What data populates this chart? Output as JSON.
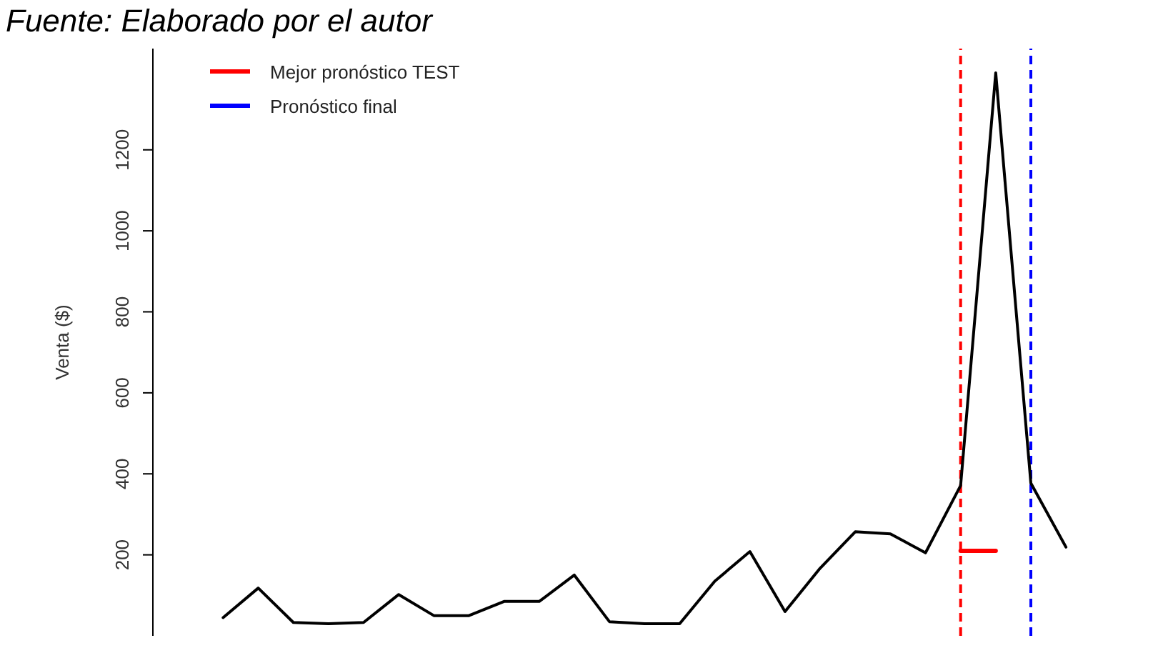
{
  "chart_data": {
    "type": "line",
    "annotations": [
      "Fuente: Elaborado por el autor"
    ],
    "ylabel": "Venta ($)",
    "categories": [
      null,
      null,
      null,
      null,
      null,
      null,
      null,
      null,
      null,
      null,
      null,
      null,
      null,
      null,
      null,
      null,
      null,
      null,
      null,
      null,
      null,
      null,
      null,
      null,
      null
    ],
    "ylim": [
      0,
      1450
    ],
    "yticks": [
      200,
      400,
      600,
      800,
      1000,
      1200
    ],
    "series": [
      {
        "color": "#000000",
        "values": [
          45,
          118,
          33,
          30,
          33,
          102,
          50,
          50,
          85,
          85,
          150,
          35,
          30,
          30,
          135,
          208,
          60,
          167,
          257,
          252,
          205,
          371,
          1390,
          377,
          219
        ]
      },
      {
        "name": "Mejor pronóstico TEST",
        "color": "#ff0000",
        "values": [
          null,
          null,
          null,
          null,
          null,
          null,
          null,
          null,
          null,
          null,
          null,
          null,
          null,
          null,
          null,
          null,
          null,
          null,
          null,
          null,
          null,
          210,
          210,
          null,
          null
        ]
      }
    ],
    "ref_lines": [
      {
        "axis": "x",
        "color": "#ff0000",
        "line_style": "dashed"
      },
      {
        "axis": "x",
        "label": "Pronóstico final",
        "color": "#0000ff",
        "line_style": "dashed"
      }
    ],
    "legend": "top left",
    "grid": false,
    "marker": "none",
    "line_style": "solid"
  }
}
